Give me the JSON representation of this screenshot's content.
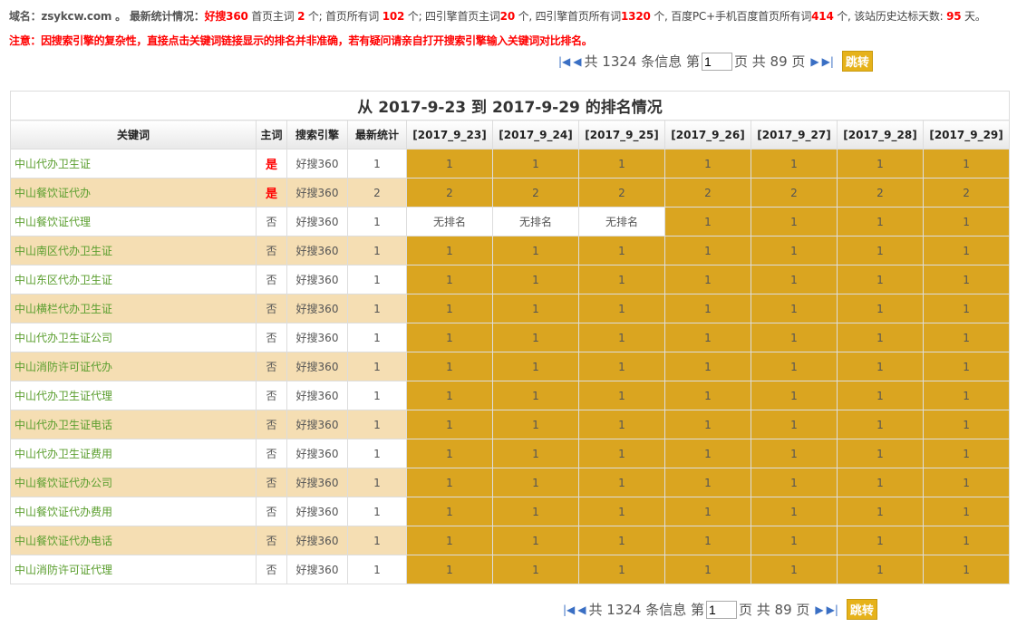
{
  "info": {
    "domain_label": "域名：",
    "domain": "zsykcw.com",
    "sep": " 。 ",
    "stat_label": "最新统计情况：",
    "engine": "好搜360",
    "t1": " 首页主词 ",
    "v1": "2",
    "t2": " 个; 首页所有词 ",
    "v2": "102",
    "t3": " 个; 四引擎首页主词",
    "v3": "20",
    "t4": " 个, 四引擎首页所有词",
    "v4": "1320",
    "t5": " 个, 百度PC+手机百度首页所有词",
    "v5": "414",
    "t6": " 个, 该站历史达标天数: ",
    "v6": "95",
    "t7": " 天。"
  },
  "note": "注意：因搜索引擎的复杂性，直接点击关键词链接显示的排名并非准确，若有疑问请亲自打开搜索引擎输入关键词对比排名。",
  "pager": {
    "total_text": "共 1324 条信息 第",
    "page": "1",
    "pages_text": "页 共 89 页",
    "go": "跳转"
  },
  "table": {
    "title": "从 2017-9-23 到 2017-9-29 的排名情况",
    "headers": [
      "关键词",
      "主词",
      "搜索引擎",
      "最新统计",
      "[2017_9_23]",
      "[2017_9_24]",
      "[2017_9_25]",
      "[2017_9_26]",
      "[2017_9_27]",
      "[2017_9_28]",
      "[2017_9_29]"
    ],
    "rows": [
      [
        "中山代办卫生证",
        "是",
        "好搜360",
        "1",
        "1",
        "1",
        "1",
        "1",
        "1",
        "1",
        "1"
      ],
      [
        "中山餐饮证代办",
        "是",
        "好搜360",
        "2",
        "2",
        "2",
        "2",
        "2",
        "2",
        "2",
        "2"
      ],
      [
        "中山餐饮证代理",
        "否",
        "好搜360",
        "1",
        "无排名",
        "无排名",
        "无排名",
        "1",
        "1",
        "1",
        "1"
      ],
      [
        "中山南区代办卫生证",
        "否",
        "好搜360",
        "1",
        "1",
        "1",
        "1",
        "1",
        "1",
        "1",
        "1"
      ],
      [
        "中山东区代办卫生证",
        "否",
        "好搜360",
        "1",
        "1",
        "1",
        "1",
        "1",
        "1",
        "1",
        "1"
      ],
      [
        "中山横栏代办卫生证",
        "否",
        "好搜360",
        "1",
        "1",
        "1",
        "1",
        "1",
        "1",
        "1",
        "1"
      ],
      [
        "中山代办卫生证公司",
        "否",
        "好搜360",
        "1",
        "1",
        "1",
        "1",
        "1",
        "1",
        "1",
        "1"
      ],
      [
        "中山消防许可证代办",
        "否",
        "好搜360",
        "1",
        "1",
        "1",
        "1",
        "1",
        "1",
        "1",
        "1"
      ],
      [
        "中山代办卫生证代理",
        "否",
        "好搜360",
        "1",
        "1",
        "1",
        "1",
        "1",
        "1",
        "1",
        "1"
      ],
      [
        "中山代办卫生证电话",
        "否",
        "好搜360",
        "1",
        "1",
        "1",
        "1",
        "1",
        "1",
        "1",
        "1"
      ],
      [
        "中山代办卫生证费用",
        "否",
        "好搜360",
        "1",
        "1",
        "1",
        "1",
        "1",
        "1",
        "1",
        "1"
      ],
      [
        "中山餐饮证代办公司",
        "否",
        "好搜360",
        "1",
        "1",
        "1",
        "1",
        "1",
        "1",
        "1",
        "1"
      ],
      [
        "中山餐饮证代办费用",
        "否",
        "好搜360",
        "1",
        "1",
        "1",
        "1",
        "1",
        "1",
        "1",
        "1"
      ],
      [
        "中山餐饮证代办电话",
        "否",
        "好搜360",
        "1",
        "1",
        "1",
        "1",
        "1",
        "1",
        "1",
        "1"
      ],
      [
        "中山消防许可证代理",
        "否",
        "好搜360",
        "1",
        "1",
        "1",
        "1",
        "1",
        "1",
        "1",
        "1"
      ]
    ]
  },
  "colors": {
    "ranked": "#daa520",
    "alt_row": "#f5deb3",
    "keyword": "#5a9e2e",
    "highlight": "#ff0000"
  },
  "icons": [
    "first-page-icon",
    "prev-page-icon",
    "next-page-icon",
    "last-page-icon"
  ]
}
